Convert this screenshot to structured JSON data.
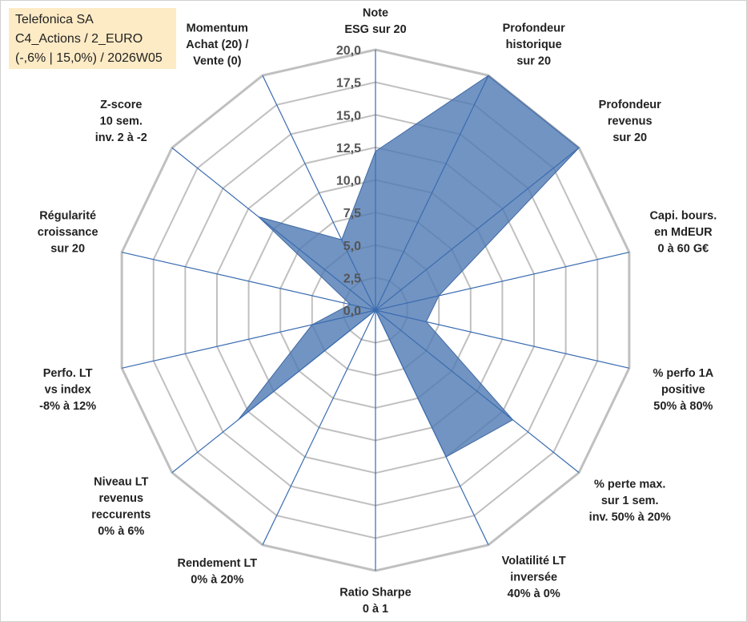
{
  "title": {
    "line1": "Telefonica SA",
    "line2": "C4_Actions / 2_EURO",
    "line3": "(-,6% | 15,0%) / 2026W05"
  },
  "chart_data": {
    "type": "radar",
    "axes": [
      {
        "label": [
          "Note",
          "ESG sur 20"
        ],
        "value": 12.2
      },
      {
        "label": [
          "Profondeur",
          "historique",
          "sur 20"
        ],
        "value": 20.0
      },
      {
        "label": [
          "Profondeur",
          "revenus",
          "sur 20"
        ],
        "value": 20.0
      },
      {
        "label": [
          "Capi. bours.",
          "en MdEUR",
          "0 à 60 G€"
        ],
        "value": 5.0
      },
      {
        "label": [
          "% perfo 1A",
          "positive",
          "50% à 80%"
        ],
        "value": 4.0
      },
      {
        "label": [
          "% perte max.",
          "sur 1 sem.",
          "inv. 50% à 20%"
        ],
        "value": 13.5
      },
      {
        "label": [
          "Volatilité LT",
          "inversée",
          "40% à 0%"
        ],
        "value": 12.5
      },
      {
        "label": [
          "Ratio Sharpe",
          "0 à 1"
        ],
        "value": 0.0
      },
      {
        "label": [
          "Rendement LT",
          "0% à 20%"
        ],
        "value": 0.0
      },
      {
        "label": [
          "Niveau LT",
          "revenus",
          "reccurents",
          "0% à 6%"
        ],
        "value": 13.5
      },
      {
        "label": [
          "Perfo. LT",
          "vs index",
          "-8% à 12%"
        ],
        "value": 5.0
      },
      {
        "label": [
          "Régularité",
          "croissance",
          "sur 20"
        ],
        "value": 2.0
      },
      {
        "label": [
          "Z-score",
          "10 sem.",
          "inv. 2 à -2"
        ],
        "value": 11.5
      },
      {
        "label": [
          "Momentum",
          "Achat (20) /",
          "Vente (0)"
        ],
        "value": 6.0
      }
    ],
    "ticks": [
      "0,0",
      "2,5",
      "5,0",
      "7,5",
      "10,0",
      "12,5",
      "15,0",
      "17,5",
      "20,0"
    ],
    "rmax": 20,
    "series_color": "#4f79b3",
    "grid_color": "#c0c0c0",
    "axis_color": "#3a6cb0"
  }
}
